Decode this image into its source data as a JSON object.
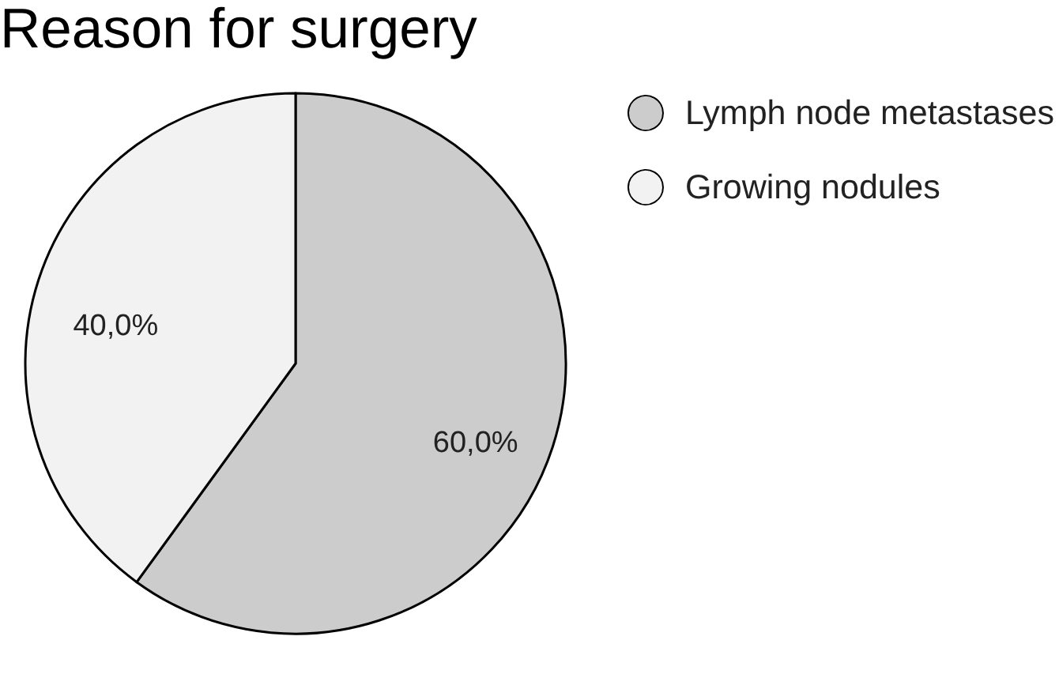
{
  "chart_data": {
    "type": "pie",
    "title": "Reason for surgery",
    "categories": [
      "Lymph node metastases",
      "Growing nodules"
    ],
    "values": [
      60,
      40
    ],
    "value_labels": [
      "60,0%",
      "40,0%"
    ],
    "colors": [
      "#cccccc",
      "#f2f2f2"
    ],
    "legend": "top right"
  }
}
